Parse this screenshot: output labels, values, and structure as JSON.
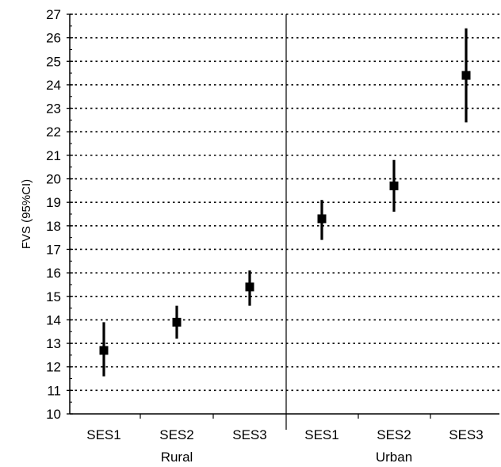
{
  "chart_data": {
    "type": "scatter",
    "title": "",
    "ylabel": "FVS (95%CI)",
    "xlabel": "",
    "ylim": [
      10,
      27
    ],
    "yticks": [
      10,
      11,
      12,
      13,
      14,
      15,
      16,
      17,
      18,
      19,
      20,
      21,
      22,
      23,
      24,
      25,
      26,
      27
    ],
    "grid": true,
    "legend": "none",
    "groups": [
      "Rural",
      "Urban"
    ],
    "categories": [
      "SES1",
      "SES2",
      "SES3",
      "SES1",
      "SES2",
      "SES3"
    ],
    "points": [
      {
        "group": "Rural",
        "category": "SES1",
        "value": 12.7,
        "ci_low": 11.6,
        "ci_high": 13.9
      },
      {
        "group": "Rural",
        "category": "SES2",
        "value": 13.9,
        "ci_low": 13.2,
        "ci_high": 14.6
      },
      {
        "group": "Rural",
        "category": "SES3",
        "value": 15.4,
        "ci_low": 14.6,
        "ci_high": 16.1
      },
      {
        "group": "Urban",
        "category": "SES1",
        "value": 18.3,
        "ci_low": 17.4,
        "ci_high": 19.1
      },
      {
        "group": "Urban",
        "category": "SES2",
        "value": 19.7,
        "ci_low": 18.6,
        "ci_high": 20.8
      },
      {
        "group": "Urban",
        "category": "SES3",
        "value": 24.4,
        "ci_low": 22.4,
        "ci_high": 26.4
      }
    ],
    "colors": {
      "marker": "#000000",
      "grid": "#000000",
      "axis": "#000000"
    }
  }
}
